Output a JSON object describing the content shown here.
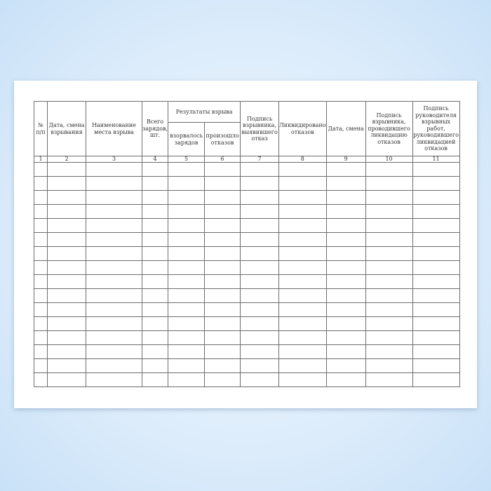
{
  "columns": {
    "c1": "№ п/п",
    "c2": "Дата, смена взрывания",
    "c3": "Наименование места взрыва",
    "c4": "Всего зарядов, шт.",
    "group": "Результаты взрыва",
    "c5": "взорвалось зарядов",
    "c6": "произошло отказов",
    "c7": "Подпись взрывника, выявившего отказ",
    "c8": "Ликвидировано отказов",
    "c9": "Дата, смена",
    "c10": "Подпись взрывника, проводившего ликвидацию отказов",
    "c11": "Подпись руководителя взрывных работ, руководившего ликвидацией отказов"
  },
  "column_numbers": [
    "1",
    "2",
    "3",
    "4",
    "5",
    "6",
    "7",
    "8",
    "9",
    "10",
    "11"
  ],
  "empty_rows": 16
}
